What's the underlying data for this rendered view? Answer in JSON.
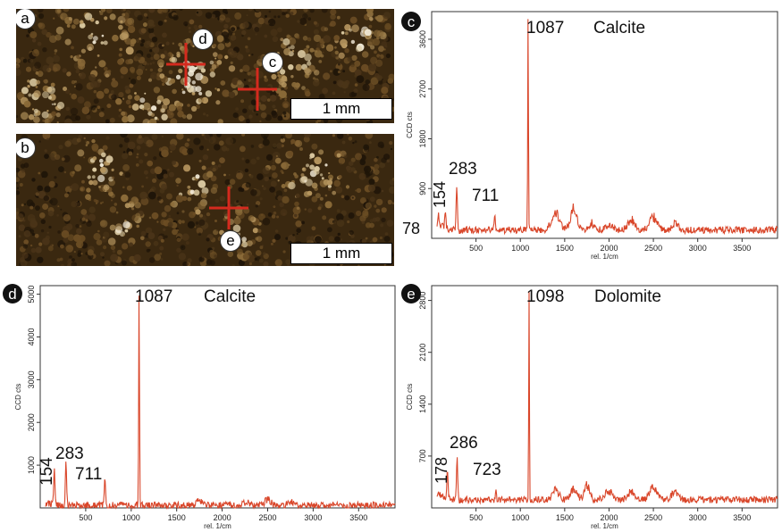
{
  "micrographs": [
    {
      "id": "a",
      "crosses": [
        {
          "label": "d"
        },
        {
          "label": "c"
        }
      ],
      "scale_label": "1 mm"
    },
    {
      "id": "b",
      "crosses": [
        {
          "label": "e"
        }
      ],
      "scale_label": "1 mm"
    }
  ],
  "chart_data": [
    {
      "panel": "c",
      "type": "line",
      "mineral": "Calcite",
      "xlabel": "rel. 1/cm",
      "ylabel": "CCD cts",
      "xlim": [
        0,
        3900
      ],
      "ylim": [
        0,
        4100
      ],
      "xticks": [
        500,
        1000,
        1500,
        2000,
        2500,
        3000,
        3500
      ],
      "yticks": [
        900,
        1800,
        2700,
        3600
      ],
      "baseline": 150,
      "peaks": [
        {
          "x": 78,
          "y": 300,
          "label": "78"
        },
        {
          "x": 154,
          "y": 500,
          "label": "154"
        },
        {
          "x": 283,
          "y": 950,
          "label": "283"
        },
        {
          "x": 711,
          "y": 450,
          "label": "711"
        },
        {
          "x": 1087,
          "y": 4050,
          "label": "1087"
        }
      ],
      "bands": [
        {
          "x": 1400,
          "y": 450,
          "w": 90
        },
        {
          "x": 1600,
          "y": 520,
          "w": 70
        },
        {
          "x": 1800,
          "y": 280,
          "w": 60
        },
        {
          "x": 2000,
          "y": 250,
          "w": 80
        },
        {
          "x": 2250,
          "y": 330,
          "w": 80
        },
        {
          "x": 2500,
          "y": 400,
          "w": 80
        },
        {
          "x": 2750,
          "y": 280,
          "w": 60
        }
      ],
      "color": "#d9462a"
    },
    {
      "panel": "d",
      "type": "line",
      "mineral": "Calcite",
      "xlabel": "rel. 1/cm",
      "ylabel": "CCD cts",
      "xlim": [
        0,
        3900
      ],
      "ylim": [
        0,
        5200
      ],
      "xticks": [
        500,
        1000,
        1500,
        2000,
        2500,
        3000,
        3500
      ],
      "yticks": [
        1000,
        2000,
        3000,
        4000,
        5000
      ],
      "baseline": 60,
      "peaks": [
        {
          "x": 154,
          "y": 900,
          "label": "154"
        },
        {
          "x": 283,
          "y": 1050,
          "label": "283"
        },
        {
          "x": 711,
          "y": 650,
          "label": "711"
        },
        {
          "x": 1087,
          "y": 5150,
          "label": "1087"
        }
      ],
      "bands": [
        {
          "x": 1750,
          "y": 160,
          "w": 60
        },
        {
          "x": 2250,
          "y": 150,
          "w": 70
        },
        {
          "x": 2500,
          "y": 200,
          "w": 70
        },
        {
          "x": 2750,
          "y": 140,
          "w": 60
        }
      ],
      "color": "#d9462a"
    },
    {
      "panel": "e",
      "type": "line",
      "mineral": "Dolomite",
      "xlabel": "rel. 1/cm",
      "ylabel": "CCD cts",
      "xlim": [
        0,
        3900
      ],
      "ylim": [
        0,
        3000
      ],
      "xticks": [
        500,
        1000,
        1500,
        2000,
        2500,
        3000,
        3500
      ],
      "yticks": [
        700,
        1400,
        2100,
        2800
      ],
      "baseline": 110,
      "peaks": [
        {
          "x": 178,
          "y": 480,
          "label": "178"
        },
        {
          "x": 286,
          "y": 680,
          "label": "286"
        },
        {
          "x": 723,
          "y": 230,
          "label": "723"
        },
        {
          "x": 1098,
          "y": 2950,
          "label": "1098"
        }
      ],
      "bands": [
        {
          "x": 1400,
          "y": 240,
          "w": 70
        },
        {
          "x": 1600,
          "y": 260,
          "w": 70
        },
        {
          "x": 1750,
          "y": 310,
          "w": 60
        },
        {
          "x": 2000,
          "y": 240,
          "w": 80
        },
        {
          "x": 2250,
          "y": 220,
          "w": 70
        },
        {
          "x": 2500,
          "y": 280,
          "w": 80
        },
        {
          "x": 2750,
          "y": 240,
          "w": 70
        }
      ],
      "color": "#d9462a"
    }
  ]
}
